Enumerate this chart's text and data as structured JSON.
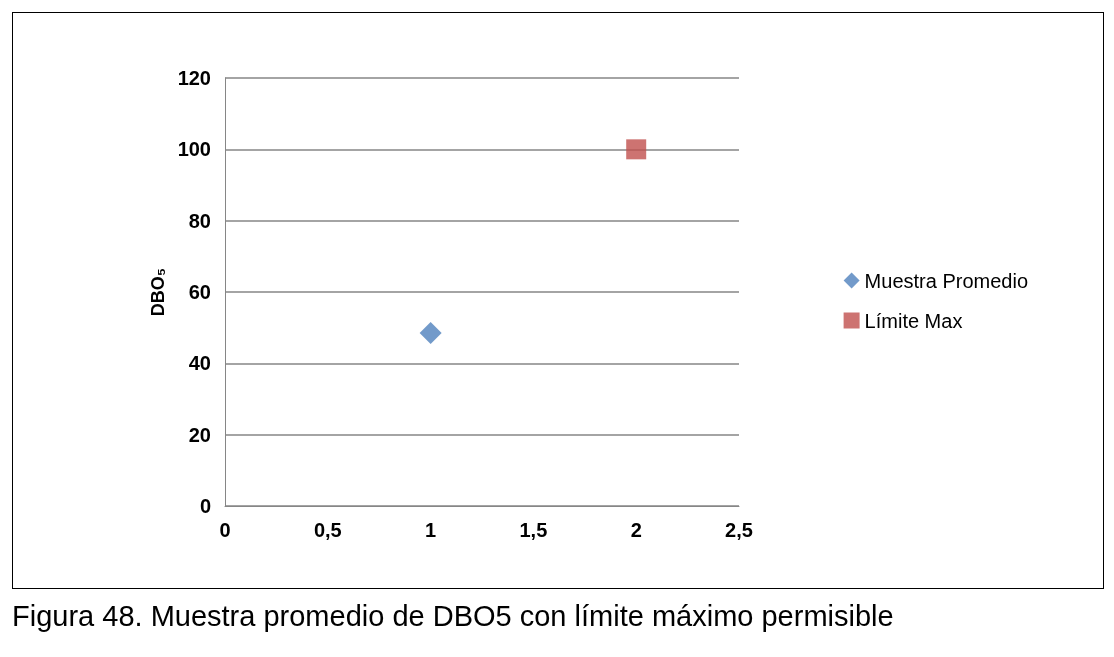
{
  "chart_data": {
    "type": "scatter",
    "ylabel": "DBO₅",
    "series": [
      {
        "name": "Muestra Promedio",
        "color": "#4f81bd",
        "marker": "diamond",
        "x": [
          1
        ],
        "values": [
          48.5
        ]
      },
      {
        "name": "Límite Max",
        "color": "#c0504d",
        "marker": "square",
        "x": [
          2
        ],
        "values": [
          100
        ]
      }
    ],
    "xlim": [
      0,
      2.5
    ],
    "xticks": [
      0,
      {
        "value": 0.5,
        "label": "0,5"
      },
      1,
      {
        "value": 1.5,
        "label": "1,5"
      },
      2,
      {
        "value": 2.5,
        "label": "2,5"
      }
    ],
    "ylim": [
      0,
      120
    ],
    "yticks": [
      0,
      20,
      40,
      60,
      80,
      100,
      120
    ],
    "grid": "y",
    "legend": "right",
    "annotations": [
      "Figura 48. Muestra promedio de DBO5 con límite máximo permisible"
    ]
  }
}
